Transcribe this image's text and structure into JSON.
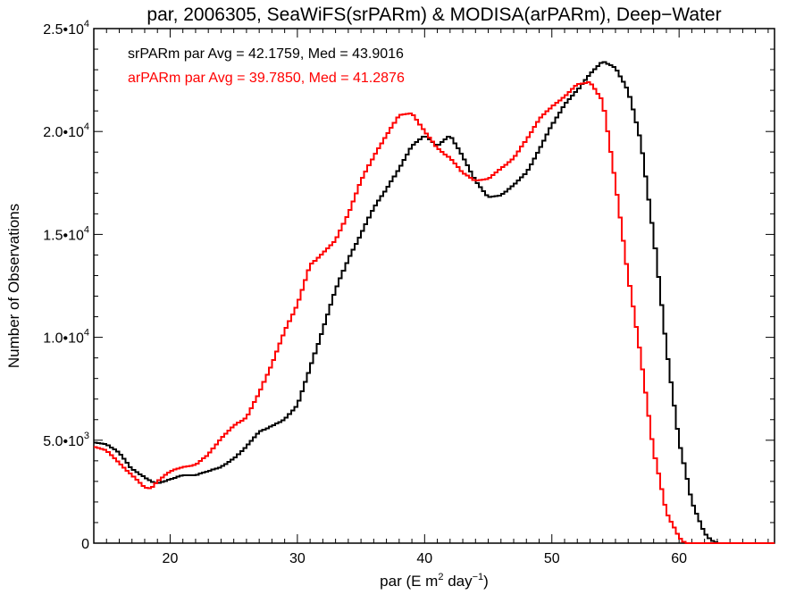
{
  "chart_data": {
    "type": "line",
    "title": "par, 2006305, SeaWiFS(srPARm) & MODISA(arPARm), Deep−Water",
    "xlabel": "par (E m² day⁻¹)",
    "ylabel": "Number of Observations",
    "xlim": [
      14,
      67.5
    ],
    "ylim": [
      0,
      25000
    ],
    "xticks": [
      20,
      30,
      40,
      50,
      60
    ],
    "xtick_labels": [
      "20",
      "30",
      "40",
      "50",
      "60"
    ],
    "yticks": [
      0,
      5000,
      10000,
      15000,
      20000,
      25000
    ],
    "ytick_labels": [
      {
        "mantissa": "0",
        "exp": ""
      },
      {
        "mantissa": "5.0•10",
        "exp": "3"
      },
      {
        "mantissa": "1.0•10",
        "exp": "4"
      },
      {
        "mantissa": "1.5•10",
        "exp": "4"
      },
      {
        "mantissa": "2.0•10",
        "exp": "4"
      },
      {
        "mantissa": "2.5•10",
        "exp": "4"
      }
    ],
    "grid": false,
    "legend_position": "top-left",
    "series": [
      {
        "name": "srPARm par Avg = 42.1759, Med = 43.9016",
        "color": "#000000",
        "points": [
          [
            14,
            4900
          ],
          [
            15,
            4800
          ],
          [
            16,
            4400
          ],
          [
            17,
            3600
          ],
          [
            18,
            3200
          ],
          [
            18.5,
            3000
          ],
          [
            19,
            2900
          ],
          [
            20,
            3100
          ],
          [
            21,
            3300
          ],
          [
            22,
            3300
          ],
          [
            23,
            3500
          ],
          [
            24,
            3700
          ],
          [
            25,
            4100
          ],
          [
            26,
            4700
          ],
          [
            27,
            5400
          ],
          [
            28,
            5700
          ],
          [
            29,
            6000
          ],
          [
            30,
            6700
          ],
          [
            31,
            8500
          ],
          [
            32,
            10400
          ],
          [
            33,
            12300
          ],
          [
            34,
            13800
          ],
          [
            35,
            15000
          ],
          [
            36,
            16300
          ],
          [
            37,
            17200
          ],
          [
            38,
            18200
          ],
          [
            39,
            19300
          ],
          [
            40,
            19800
          ],
          [
            41,
            19300
          ],
          [
            42,
            19800
          ],
          [
            43,
            18800
          ],
          [
            44,
            17600
          ],
          [
            45,
            16800
          ],
          [
            46,
            16900
          ],
          [
            47,
            17400
          ],
          [
            48,
            18000
          ],
          [
            49,
            19100
          ],
          [
            50,
            20300
          ],
          [
            51,
            21300
          ],
          [
            52,
            22000
          ],
          [
            53,
            22800
          ],
          [
            54,
            23400
          ],
          [
            55,
            23100
          ],
          [
            56,
            22000
          ],
          [
            57,
            19500
          ],
          [
            58,
            15000
          ],
          [
            59,
            9500
          ],
          [
            60,
            5000
          ],
          [
            61,
            2000
          ],
          [
            62,
            500
          ],
          [
            62.5,
            150
          ],
          [
            63,
            0
          ],
          [
            67.5,
            0
          ]
        ]
      },
      {
        "name": "arPARm par Avg = 39.7850, Med = 41.2876",
        "color": "#ff0000",
        "points": [
          [
            14,
            4700
          ],
          [
            15,
            4500
          ],
          [
            16,
            3900
          ],
          [
            17,
            3300
          ],
          [
            18,
            2700
          ],
          [
            18.5,
            2650
          ],
          [
            19,
            3000
          ],
          [
            20,
            3500
          ],
          [
            21,
            3700
          ],
          [
            22,
            3800
          ],
          [
            23,
            4300
          ],
          [
            24,
            5100
          ],
          [
            25,
            5700
          ],
          [
            26,
            6100
          ],
          [
            27,
            7300
          ],
          [
            28,
            8700
          ],
          [
            29,
            10300
          ],
          [
            30,
            11600
          ],
          [
            31,
            13500
          ],
          [
            32,
            14100
          ],
          [
            33,
            14700
          ],
          [
            34,
            16000
          ],
          [
            35,
            17600
          ],
          [
            36,
            18800
          ],
          [
            37,
            19800
          ],
          [
            38,
            20800
          ],
          [
            39,
            20900
          ],
          [
            40,
            20000
          ],
          [
            41,
            19200
          ],
          [
            42,
            18700
          ],
          [
            43,
            18000
          ],
          [
            44,
            17600
          ],
          [
            45,
            17700
          ],
          [
            46,
            18200
          ],
          [
            47,
            18700
          ],
          [
            48,
            19600
          ],
          [
            49,
            20600
          ],
          [
            50,
            21200
          ],
          [
            51,
            21700
          ],
          [
            52,
            22300
          ],
          [
            53,
            22400
          ],
          [
            54,
            21500
          ],
          [
            55,
            17500
          ],
          [
            56,
            13000
          ],
          [
            57,
            9000
          ],
          [
            58,
            4500
          ],
          [
            59,
            1500
          ],
          [
            60,
            300
          ],
          [
            60.5,
            0
          ],
          [
            67.5,
            0
          ]
        ]
      }
    ]
  }
}
